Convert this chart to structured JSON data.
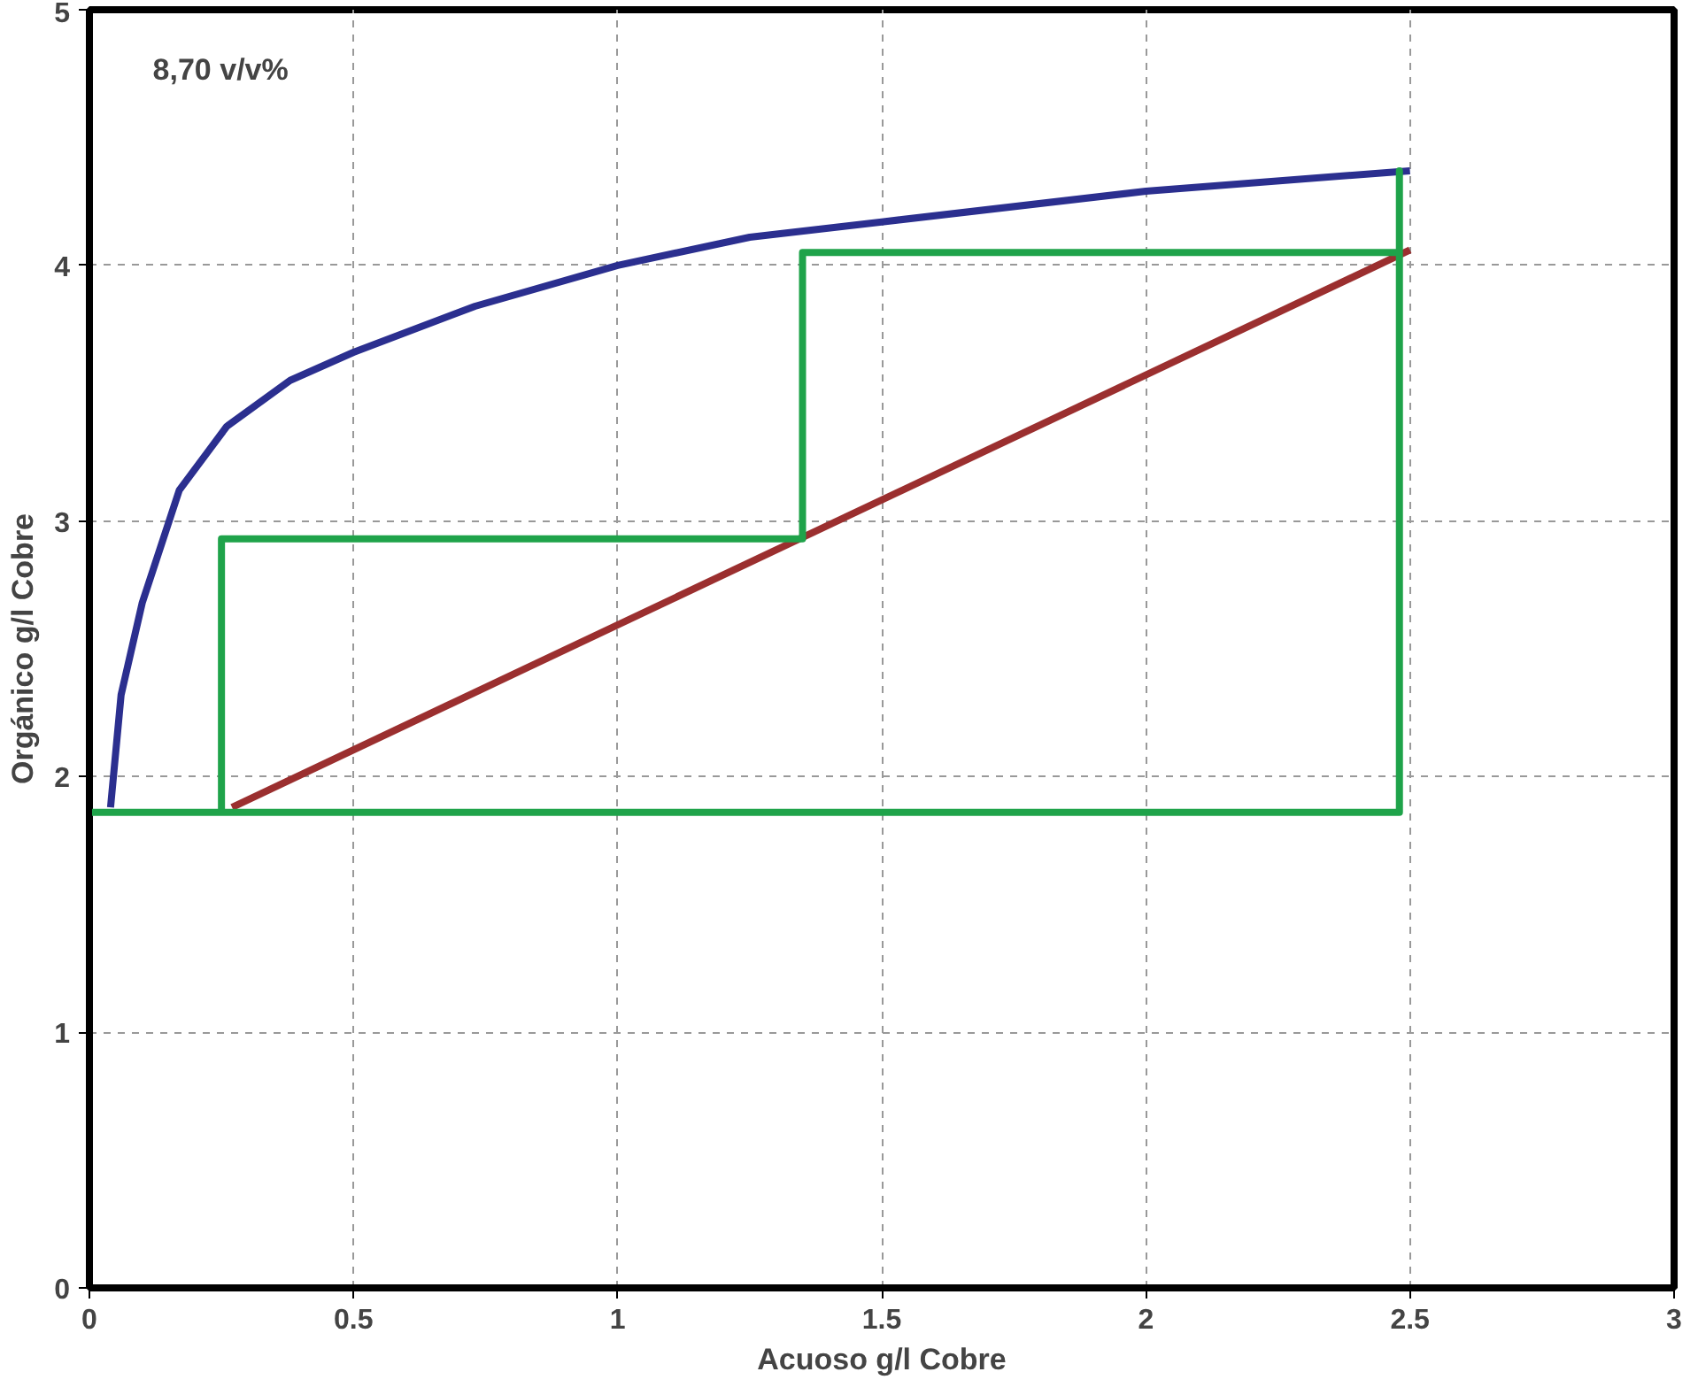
{
  "chart_data": {
    "type": "line",
    "xlabel": "Acuoso g/l Cobre",
    "ylabel": "Orgánico g/l Cobre",
    "annotations": [
      "8,70 v/v%"
    ],
    "xlim": [
      0,
      3
    ],
    "ylim": [
      0,
      5
    ],
    "xticks": [
      0,
      0.5,
      1,
      1.5,
      2,
      2.5,
      3
    ],
    "yticks": [
      0,
      1,
      2,
      3,
      4,
      5
    ],
    "grid": true,
    "marker": "none",
    "line_style": "solid",
    "series": [
      {
        "color": "#2b2f8f",
        "x": [
          0.04,
          0.06,
          0.1,
          0.17,
          0.26,
          0.38,
          0.5,
          0.73,
          1.0,
          1.25,
          1.5,
          2.0,
          2.5
        ],
        "values": [
          1.88,
          2.32,
          2.68,
          3.12,
          3.37,
          3.55,
          3.66,
          3.84,
          4.0,
          4.11,
          4.17,
          4.29,
          4.37
        ]
      },
      {
        "color": "#9b2f2f",
        "x": [
          0.27,
          2.5
        ],
        "values": [
          1.88,
          4.06
        ]
      },
      {
        "color": "#1fa34a",
        "x": [
          0,
          2.48,
          2.48,
          2.48,
          1.35,
          1.35,
          1.35,
          0.25,
          0.25
        ],
        "values": [
          1.86,
          1.86,
          4.37,
          4.05,
          4.05,
          2.93,
          2.93,
          2.93,
          1.86
        ]
      }
    ]
  }
}
